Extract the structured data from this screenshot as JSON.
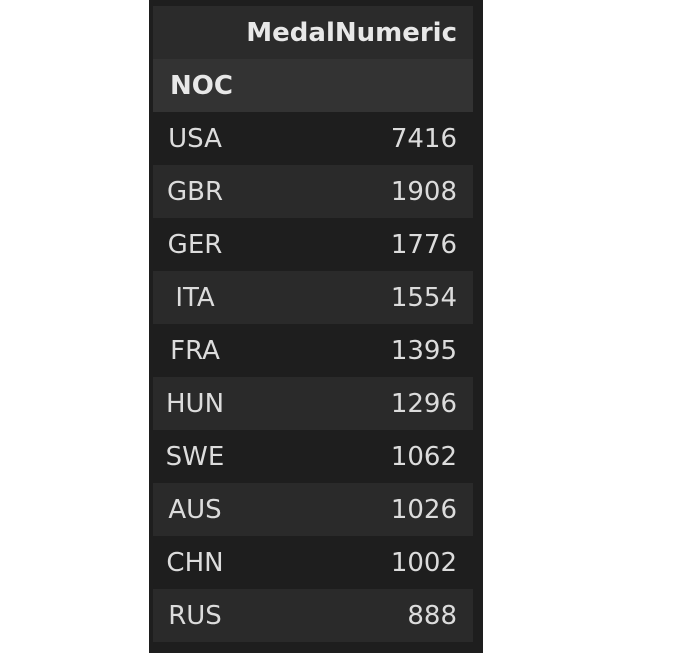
{
  "table": {
    "value_header": "MedalNumeric",
    "index_name": "NOC",
    "rows": [
      {
        "noc": "USA",
        "value": "7416"
      },
      {
        "noc": "GBR",
        "value": "1908"
      },
      {
        "noc": "GER",
        "value": "1776"
      },
      {
        "noc": "ITA",
        "value": "1554"
      },
      {
        "noc": "FRA",
        "value": "1395"
      },
      {
        "noc": "HUN",
        "value": "1296"
      },
      {
        "noc": "SWE",
        "value": "1062"
      },
      {
        "noc": "AUS",
        "value": "1026"
      },
      {
        "noc": "CHN",
        "value": "1002"
      },
      {
        "noc": "RUS",
        "value": "888"
      }
    ]
  },
  "colors": {
    "background": "#1e1e1e",
    "row_alt": "#2a2a2a",
    "header_bg": "#2b2b2b",
    "text": "#dcdcdc"
  }
}
